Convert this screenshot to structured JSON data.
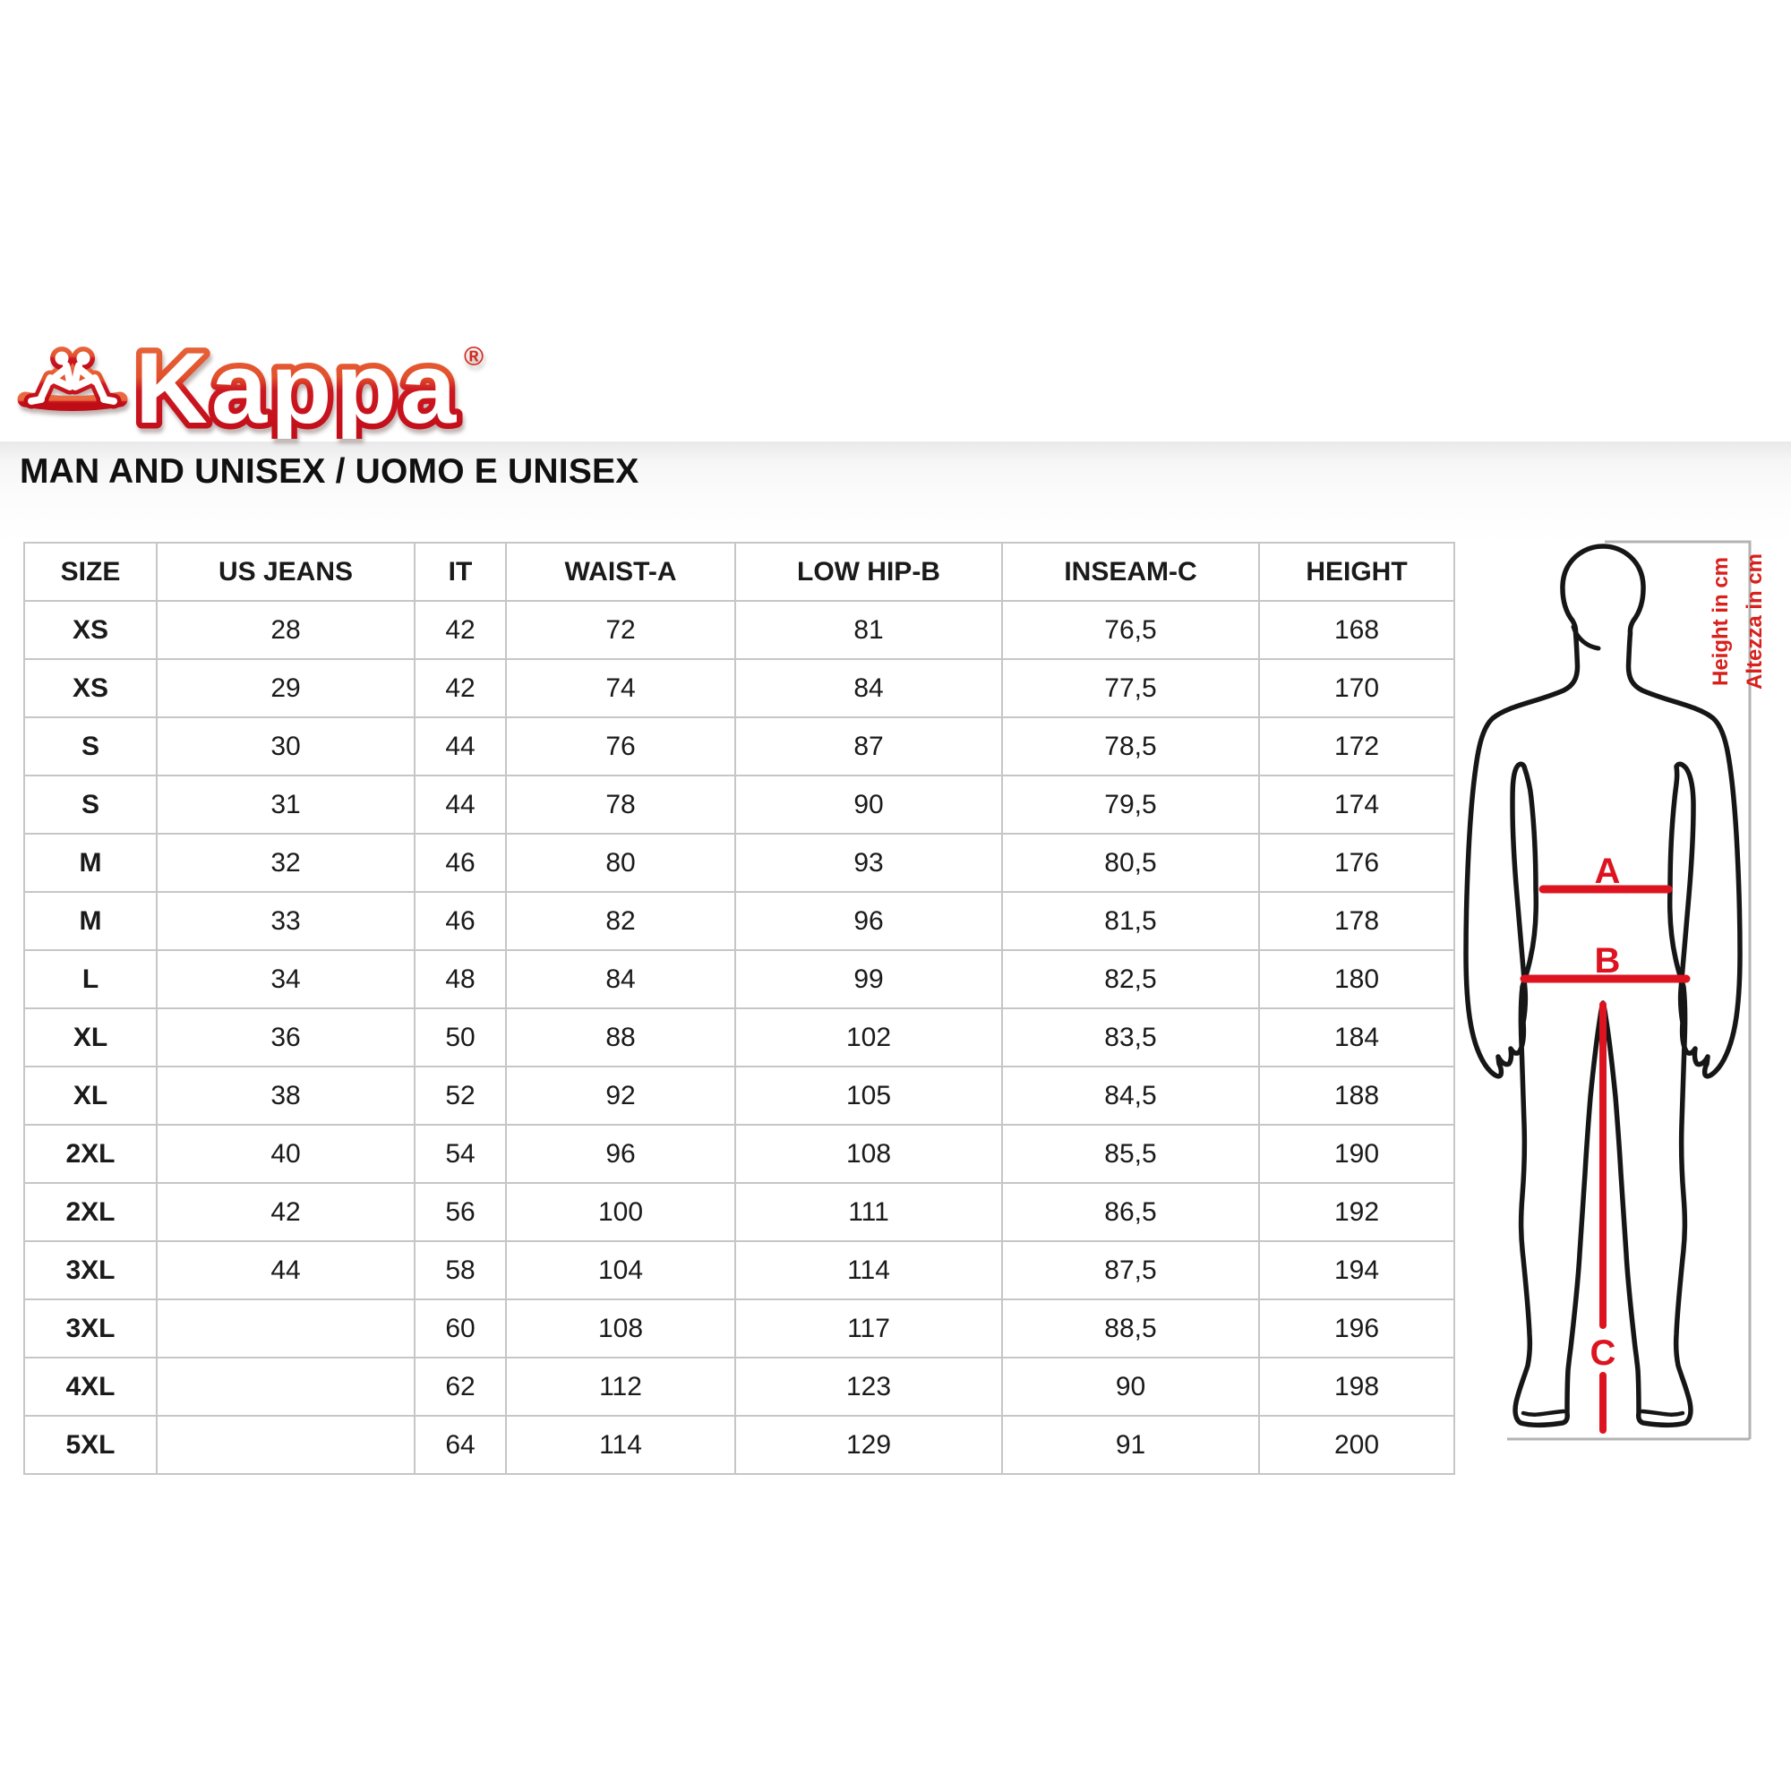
{
  "brand": {
    "name": "Kappa",
    "registered_mark": "®"
  },
  "page_title": "MAN AND UNISEX / UOMO E UNISEX",
  "size_table": {
    "columns": [
      "SIZE",
      "US JEANS",
      "IT",
      "WAIST-A",
      "LOW HIP-B",
      "INSEAM-C",
      "HEIGHT"
    ],
    "rows": [
      [
        "XS",
        "28",
        "42",
        "72",
        "81",
        "76,5",
        "168"
      ],
      [
        "XS",
        "29",
        "42",
        "74",
        "84",
        "77,5",
        "170"
      ],
      [
        "S",
        "30",
        "44",
        "76",
        "87",
        "78,5",
        "172"
      ],
      [
        "S",
        "31",
        "44",
        "78",
        "90",
        "79,5",
        "174"
      ],
      [
        "M",
        "32",
        "46",
        "80",
        "93",
        "80,5",
        "176"
      ],
      [
        "M",
        "33",
        "46",
        "82",
        "96",
        "81,5",
        "178"
      ],
      [
        "L",
        "34",
        "48",
        "84",
        "99",
        "82,5",
        "180"
      ],
      [
        "XL",
        "36",
        "50",
        "88",
        "102",
        "83,5",
        "184"
      ],
      [
        "XL",
        "38",
        "52",
        "92",
        "105",
        "84,5",
        "188"
      ],
      [
        "2XL",
        "40",
        "54",
        "96",
        "108",
        "85,5",
        "190"
      ],
      [
        "2XL",
        "42",
        "56",
        "100",
        "111",
        "86,5",
        "192"
      ],
      [
        "3XL",
        "44",
        "58",
        "104",
        "114",
        "87,5",
        "194"
      ],
      [
        "3XL",
        "",
        "60",
        "108",
        "117",
        "88,5",
        "196"
      ],
      [
        "4XL",
        "",
        "62",
        "112",
        "123",
        "90",
        "198"
      ],
      [
        "5XL",
        "",
        "64",
        "114",
        "129",
        "91",
        "200"
      ]
    ]
  },
  "figure": {
    "marker_a": "A",
    "marker_b": "B",
    "marker_c": "C",
    "height_label_en": "Height in cm",
    "height_label_it": "Altezza in cm"
  },
  "colors": {
    "accent_red": "#dd1420",
    "logo_red_top": "#e2512c",
    "logo_red_bottom": "#bf0d17",
    "table_border": "#c6c6c6",
    "frame_gray": "#b3b3b3",
    "text": "#1a1a1a"
  }
}
